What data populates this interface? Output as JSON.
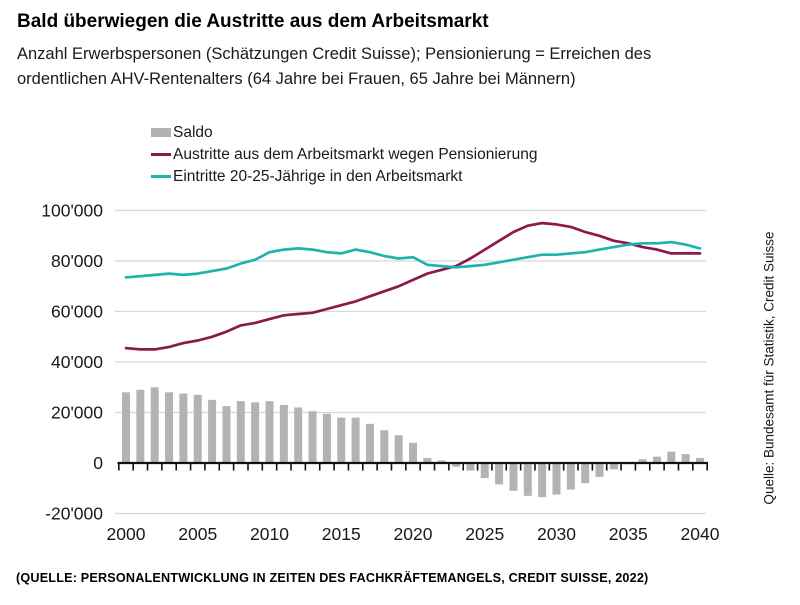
{
  "header": {
    "title": "Bald überwiegen die Austritte aus dem Arbeitsmarkt",
    "subtitle": "Anzahl Erwerbspersonen (Schätzungen Credit Suisse); Pensionierung = Erreichen des ordentlichen AHV-Rentenalters (64 Jahre bei Frauen, 65 Jahre bei Männern)"
  },
  "legend": [
    {
      "label": "Saldo",
      "type": "bar",
      "color": "#b3b3b3"
    },
    {
      "label": "Austritte aus dem Arbeitsmarkt wegen Pensionierung",
      "type": "line",
      "color": "#8a1a4e"
    },
    {
      "label": "Eintritte 20-25-Jährige in den Arbeitsmarkt",
      "type": "line",
      "color": "#1eb4ac"
    }
  ],
  "side_note": "Quelle: Bundesamt für Statistik, Credit Suisse",
  "footer_caption": "(QUELLE: PERSONALENTWICKLUNG IN ZEITEN DES FACHKRÄFTEMANGELS, CREDIT SUISSE, 2022)",
  "colors": {
    "bars": "#b3b3b3",
    "austritte_line": "#8a1a4e",
    "eintritte_line": "#1eb4ac",
    "grid": "#d8d8d8",
    "axis": "#111111"
  },
  "chart_data": {
    "type": "bar+line combo",
    "title": "Bald überwiegen die Austritte aus dem Arbeitsmarkt",
    "xlabel": "",
    "ylabel": "Anzahl Erwerbspersonen",
    "x": [
      2000,
      2001,
      2002,
      2003,
      2004,
      2005,
      2006,
      2007,
      2008,
      2009,
      2010,
      2011,
      2012,
      2013,
      2014,
      2015,
      2016,
      2017,
      2018,
      2019,
      2020,
      2021,
      2022,
      2023,
      2024,
      2025,
      2026,
      2027,
      2028,
      2029,
      2030,
      2031,
      2032,
      2033,
      2034,
      2035,
      2036,
      2037,
      2038,
      2039,
      2040
    ],
    "x_tick_labels": [
      "2000",
      "2005",
      "2010",
      "2015",
      "2020",
      "2025",
      "2030",
      "2035",
      "2040"
    ],
    "y_ticks": [
      100000,
      80000,
      60000,
      40000,
      20000,
      0,
      -20000
    ],
    "y_tick_labels": [
      "100'000",
      "80'000",
      "60'000",
      "40'000",
      "20'000",
      "0",
      "-20'000"
    ],
    "ylim": [
      -27000,
      106000
    ],
    "grid": "horizontal",
    "legend_position": "top",
    "series": [
      {
        "name": "Saldo",
        "type": "bar",
        "color": "#b3b3b3",
        "values": [
          28000,
          29000,
          30000,
          28000,
          27500,
          27000,
          25000,
          22500,
          24500,
          24000,
          24500,
          23000,
          22000,
          20500,
          19500,
          18000,
          18000,
          15500,
          13000,
          11000,
          8000,
          2000,
          1000,
          -1500,
          -3000,
          -6000,
          -8500,
          -11000,
          -13000,
          -13500,
          -12500,
          -10500,
          -8000,
          -5500,
          -2500,
          -500,
          1500,
          2500,
          4500,
          3500,
          2000
        ]
      },
      {
        "name": "Austritte aus dem Arbeitsmarkt wegen Pensionierung",
        "type": "line",
        "color": "#8a1a4e",
        "values": [
          45500,
          45000,
          45000,
          46000,
          47500,
          48500,
          50000,
          52000,
          54500,
          55500,
          57000,
          58500,
          59000,
          59500,
          61000,
          62500,
          64000,
          66000,
          68000,
          70000,
          72500,
          75000,
          76500,
          78000,
          81000,
          84500,
          88000,
          91500,
          94000,
          95000,
          94500,
          93500,
          91500,
          90000,
          88000,
          87000,
          85500,
          84500,
          83000,
          83000,
          83000
        ]
      },
      {
        "name": "Eintritte 20-25-Jährige in den Arbeitsmarkt",
        "type": "line",
        "color": "#1eb4ac",
        "values": [
          73500,
          74000,
          74500,
          75000,
          74500,
          75000,
          76000,
          77000,
          79000,
          80500,
          83500,
          84500,
          85000,
          84500,
          83500,
          83000,
          84500,
          83500,
          82000,
          81000,
          81500,
          78500,
          78000,
          77500,
          78000,
          78500,
          79500,
          80500,
          81500,
          82500,
          82500,
          83000,
          83500,
          84500,
          85500,
          86500,
          87000,
          87000,
          87500,
          86500,
          85000
        ]
      }
    ]
  }
}
